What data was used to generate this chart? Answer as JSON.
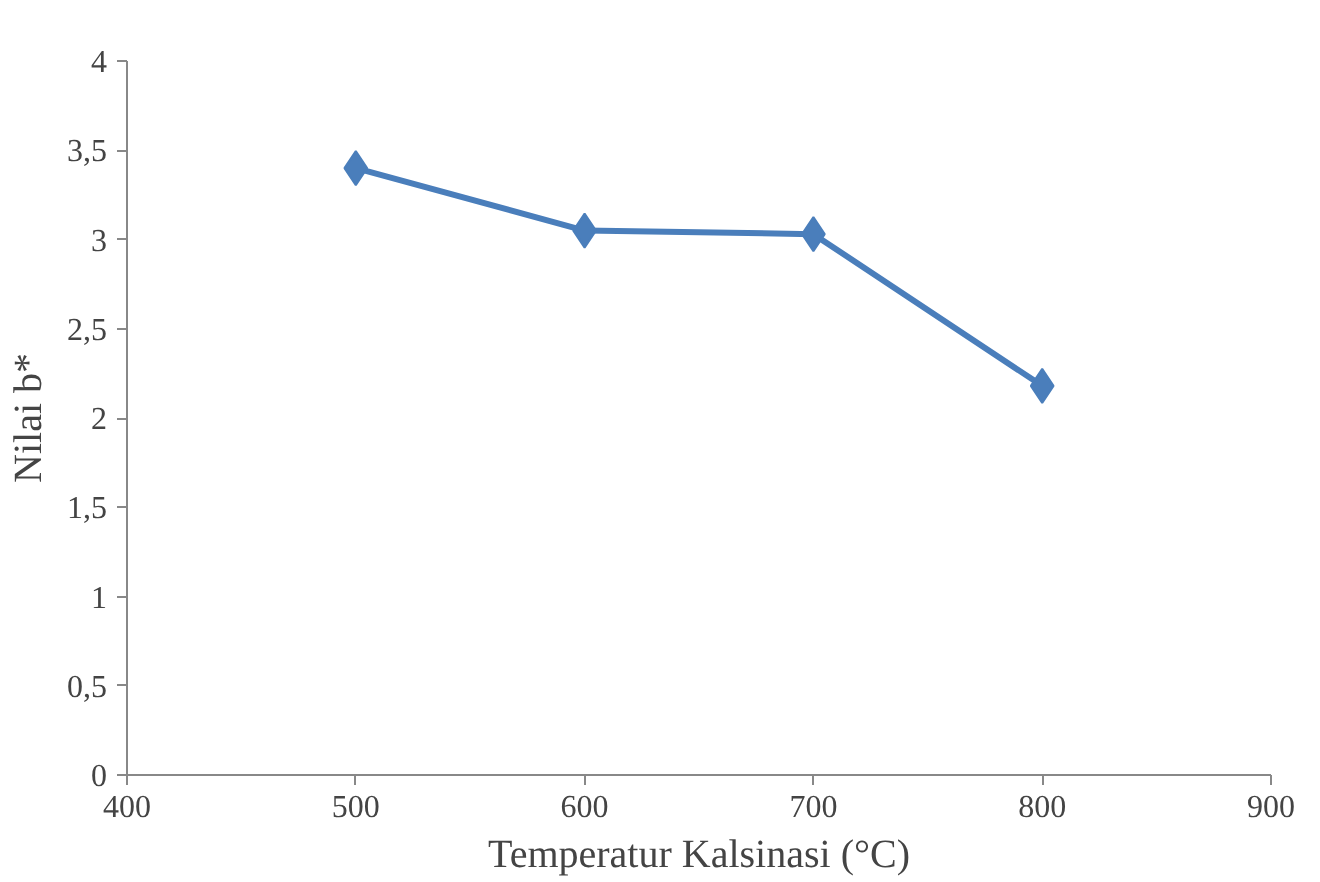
{
  "chart_data": {
    "type": "line",
    "xlabel": "Temperatur Kalsinasi (°C)",
    "ylabel": "Nilai b*",
    "x": [
      500,
      600,
      700,
      800
    ],
    "series": [
      {
        "color": "#4a7ebb",
        "values": [
          3.4,
          3.05,
          3.03,
          2.18
        ]
      }
    ],
    "xlim": [
      400,
      900
    ],
    "xticks": [
      400,
      500,
      600,
      700,
      800,
      900
    ],
    "ylim": [
      0,
      4
    ],
    "yticks": [
      0,
      {
        "value": 0.5,
        "label": "0,5"
      },
      1,
      {
        "value": 1.5,
        "label": "1,5"
      },
      2,
      {
        "value": 2.5,
        "label": "2,5"
      },
      3,
      {
        "value": 3.5,
        "label": "3,5"
      },
      4
    ],
    "grid": false,
    "marker": "diamond",
    "line_style": "solid"
  }
}
